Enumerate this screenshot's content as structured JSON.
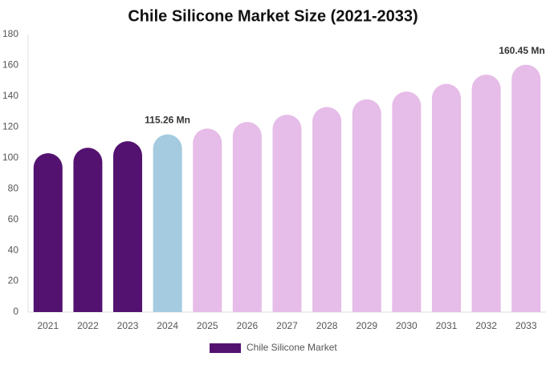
{
  "chart_data": {
    "type": "bar",
    "title": "Chile Silicone Market Size (2021-2033)",
    "categories": [
      "2021",
      "2022",
      "2023",
      "2024",
      "2025",
      "2026",
      "2027",
      "2028",
      "2029",
      "2030",
      "2031",
      "2032",
      "2033"
    ],
    "series": [
      {
        "name": "Chile Silicone Market",
        "color": "#541270",
        "values": [
          103,
          106.6,
          110.8,
          115.26,
          119,
          123.3,
          128,
          133,
          138,
          143,
          148,
          154,
          160.45
        ],
        "value_labels": [
          null,
          null,
          null,
          "115.26 Mn",
          null,
          null,
          null,
          null,
          null,
          null,
          null,
          null,
          "160.45 Mn"
        ],
        "bar_colors": [
          "#541270",
          "#541270",
          "#541270",
          "#a4cbdf",
          "#e6bce8",
          "#e6bce8",
          "#e6bce8",
          "#e6bce8",
          "#e6bce8",
          "#e6bce8",
          "#e6bce8",
          "#e6bce8",
          "#e6bce8"
        ]
      }
    ],
    "ylim": [
      0,
      180
    ],
    "yticks": [
      0,
      20,
      40,
      60,
      80,
      100,
      120,
      140,
      160,
      180
    ],
    "grid": false,
    "legend": "bottom"
  }
}
